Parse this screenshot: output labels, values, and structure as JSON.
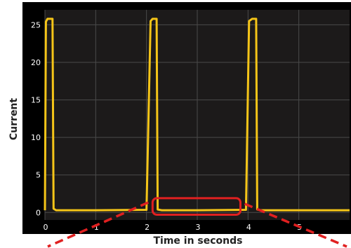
{
  "chart_data": {
    "type": "line",
    "title": "",
    "xlabel": "Time in seconds",
    "ylabel": "Current",
    "xlim": [
      0,
      6
    ],
    "ylim": [
      -1,
      27
    ],
    "x_ticks": [
      0,
      1,
      2,
      3,
      4,
      5
    ],
    "y_ticks": [
      0,
      5,
      10,
      15,
      20,
      25
    ],
    "grid": true,
    "series": [
      {
        "x": [
          0,
          0.02,
          0.05,
          0.15,
          0.17,
          0.22,
          1.0,
          2.0,
          2.08,
          2.12,
          2.2,
          2.22,
          2.3,
          3.0,
          3.96,
          4.02,
          4.08,
          4.16,
          4.18,
          4.25,
          5.0,
          6.0
        ],
        "y": [
          0.3,
          25.4,
          25.8,
          25.8,
          0.5,
          0.3,
          0.3,
          0.35,
          25.5,
          25.8,
          25.8,
          0.4,
          0.3,
          0.3,
          0.35,
          25.5,
          25.8,
          25.8,
          0.4,
          0.3,
          0.3,
          0.3
        ]
      }
    ],
    "colors": {
      "plot_background": "#1c1a1a",
      "frame": "#000000",
      "grid": "#4a4a4a",
      "line": "#f5c518",
      "tick_text": "#ffffff",
      "highlight": "#e02020",
      "axis_title": "#222222"
    },
    "annotations": {
      "highlight_box": {
        "x0": 2.12,
        "x1": 3.85,
        "y0": -0.3,
        "y1": 1.9
      },
      "dashed_leaders": true
    }
  }
}
